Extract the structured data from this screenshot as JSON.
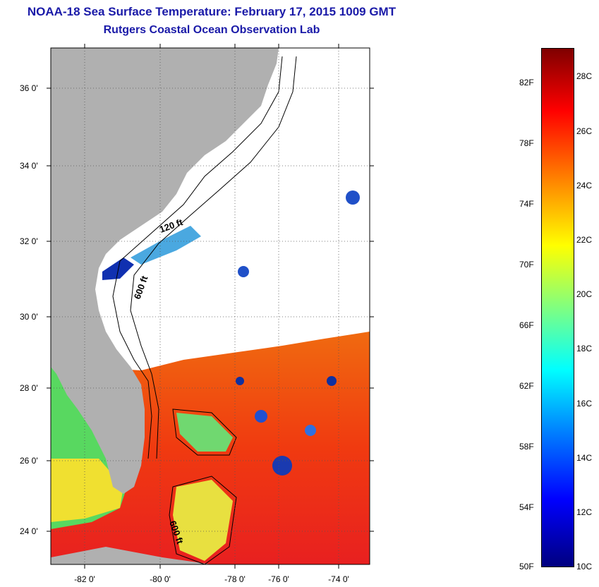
{
  "title": "NOAA-18 Sea Surface Temperature:  February 17, 2015 1009 GMT",
  "subtitle": "Rutgers Coastal Ocean Observation Lab",
  "map": {
    "lat_labels": [
      "36 0'",
      "34 0'",
      "32 0'",
      "30 0'",
      "28 0'",
      "26 0'",
      "24 0'"
    ],
    "lon_labels": [
      "-82 0'",
      "-80 0'",
      "-78 0'",
      "-76 0'",
      "-74 0'"
    ],
    "contour_labels": [
      "120 ft",
      "600 ft",
      "600 ft"
    ]
  },
  "colorbar": {
    "fahrenheit": [
      "82F",
      "78F",
      "74F",
      "70F",
      "66F",
      "62F",
      "58F",
      "54F",
      "50F"
    ],
    "celsius": [
      "28C",
      "26C",
      "24C",
      "22C",
      "20C",
      "18C",
      "16C",
      "14C",
      "12C",
      "10C"
    ],
    "colors": [
      "#00007f",
      "#0000ff",
      "#0080ff",
      "#00ffff",
      "#80ff80",
      "#ffff00",
      "#ff8000",
      "#ff0000",
      "#7f0000"
    ]
  }
}
